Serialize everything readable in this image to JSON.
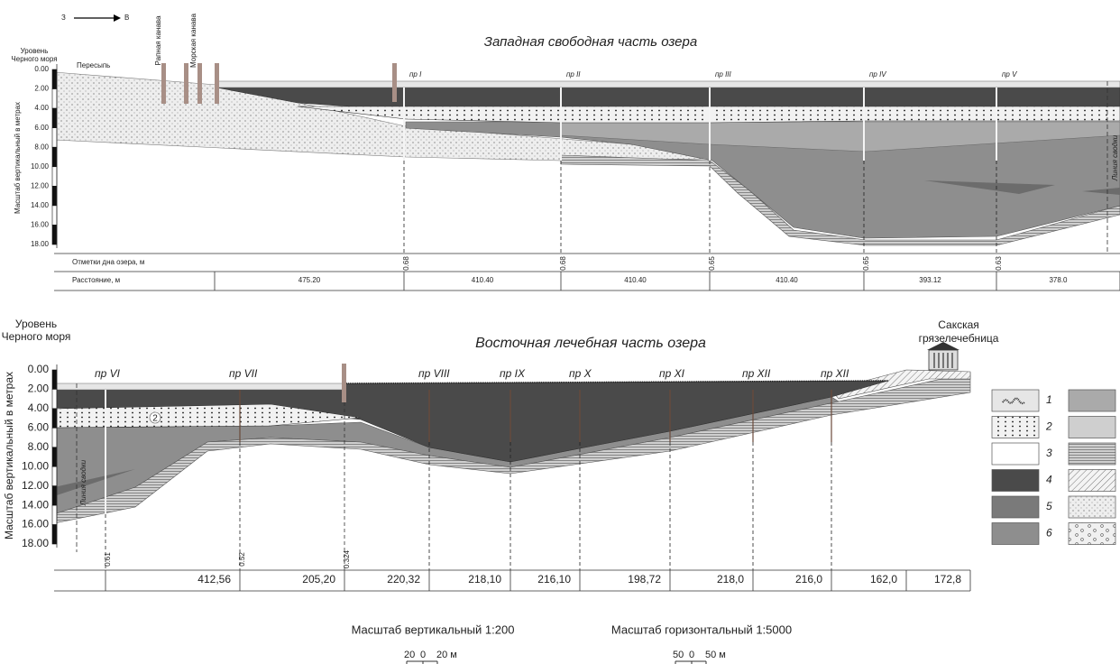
{
  "direction": {
    "from": "З",
    "to": "В"
  },
  "top": {
    "title": "Западная свободная часть озера",
    "sea_level": [
      "Уровень",
      "Черного моря"
    ],
    "axis_label": "Масштаб вертикальный в метрах",
    "depth_ticks": [
      "0.00",
      "2.00",
      "4.00",
      "6.00",
      "8.00",
      "10.00",
      "12.00",
      "14.00",
      "16.00",
      "18.00"
    ],
    "shore": "Пересыпь",
    "canals": [
      "Рапная канава",
      "Морская канава"
    ],
    "profiles": [
      "пр I",
      "пр II",
      "пр III",
      "пр IV",
      "пр V"
    ],
    "fault": "Линия сводки",
    "bottom_label": "Отметки дна озера, м",
    "bottom_marks": [
      "0.68",
      "0.68",
      "0.65",
      "0.65",
      "0.63"
    ],
    "distance_label": "Расстояние, м",
    "distances": [
      "475.20",
      "410.40",
      "410.40",
      "410.40",
      "393.12",
      "378.0"
    ]
  },
  "bottom": {
    "title": "Восточная лечебная часть озера",
    "sea_level": [
      "Уровень",
      "Черного моря"
    ],
    "axis_label": "Масштаб вертикальный в метрах",
    "depth_ticks": [
      "0.00",
      "2.00",
      "4.00",
      "6.00",
      "8.00",
      "10.00",
      "12.00",
      "14.00",
      "16.00",
      "18.00"
    ],
    "profiles": [
      "пр VI",
      "пр VII",
      "пр VIII",
      "пр IX",
      "пр X",
      "пр XI",
      "пр XII",
      "пр XII"
    ],
    "layer_note": "2",
    "fault": "Линия сводки",
    "hospital": [
      "Сакская",
      "грязелечебница"
    ],
    "bottom_marks": [
      "0.61",
      "0.52",
      "0.324"
    ],
    "distances": [
      "412,56",
      "205,20",
      "220,32",
      "218,10",
      "216,10",
      "198,72",
      "218,0",
      "216,0",
      "162,0",
      "172,8"
    ]
  },
  "legend": [
    "1",
    "2",
    "3",
    "4",
    "5",
    "6"
  ],
  "scales": [
    {
      "label": "Масштаб вертикальный 1:200",
      "ticks": [
        "20",
        "0",
        "20 м"
      ]
    },
    {
      "label": "Масштаб горизонтальный 1:5000",
      "ticks": [
        "50",
        "0",
        "50 м"
      ]
    }
  ]
}
